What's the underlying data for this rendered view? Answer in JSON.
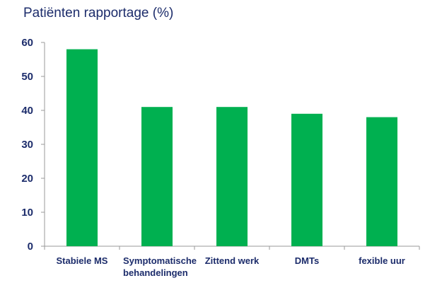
{
  "chart_data": {
    "type": "bar",
    "title": "Patiënten rapportage (%)",
    "xlabel": "",
    "ylabel": "",
    "categories": [
      "Stabiele MS",
      "Symptomatische behandelingen",
      "Zittend werk",
      "DMTs",
      "fexible uur"
    ],
    "category_lines": [
      [
        "Stabiele MS"
      ],
      [
        "Symptomatische",
        "behandelingen"
      ],
      [
        "Zittend werk"
      ],
      [
        "DMTs"
      ],
      [
        "fexible uur"
      ]
    ],
    "values": [
      58,
      41,
      41,
      39,
      38
    ],
    "ylim": [
      0,
      60
    ],
    "yticks": [
      0,
      10,
      20,
      30,
      40,
      50,
      60
    ],
    "grid": false,
    "bar_color": "#00b050",
    "axis_color": "#9a9a9a",
    "text_color": "#1c2c6b"
  }
}
